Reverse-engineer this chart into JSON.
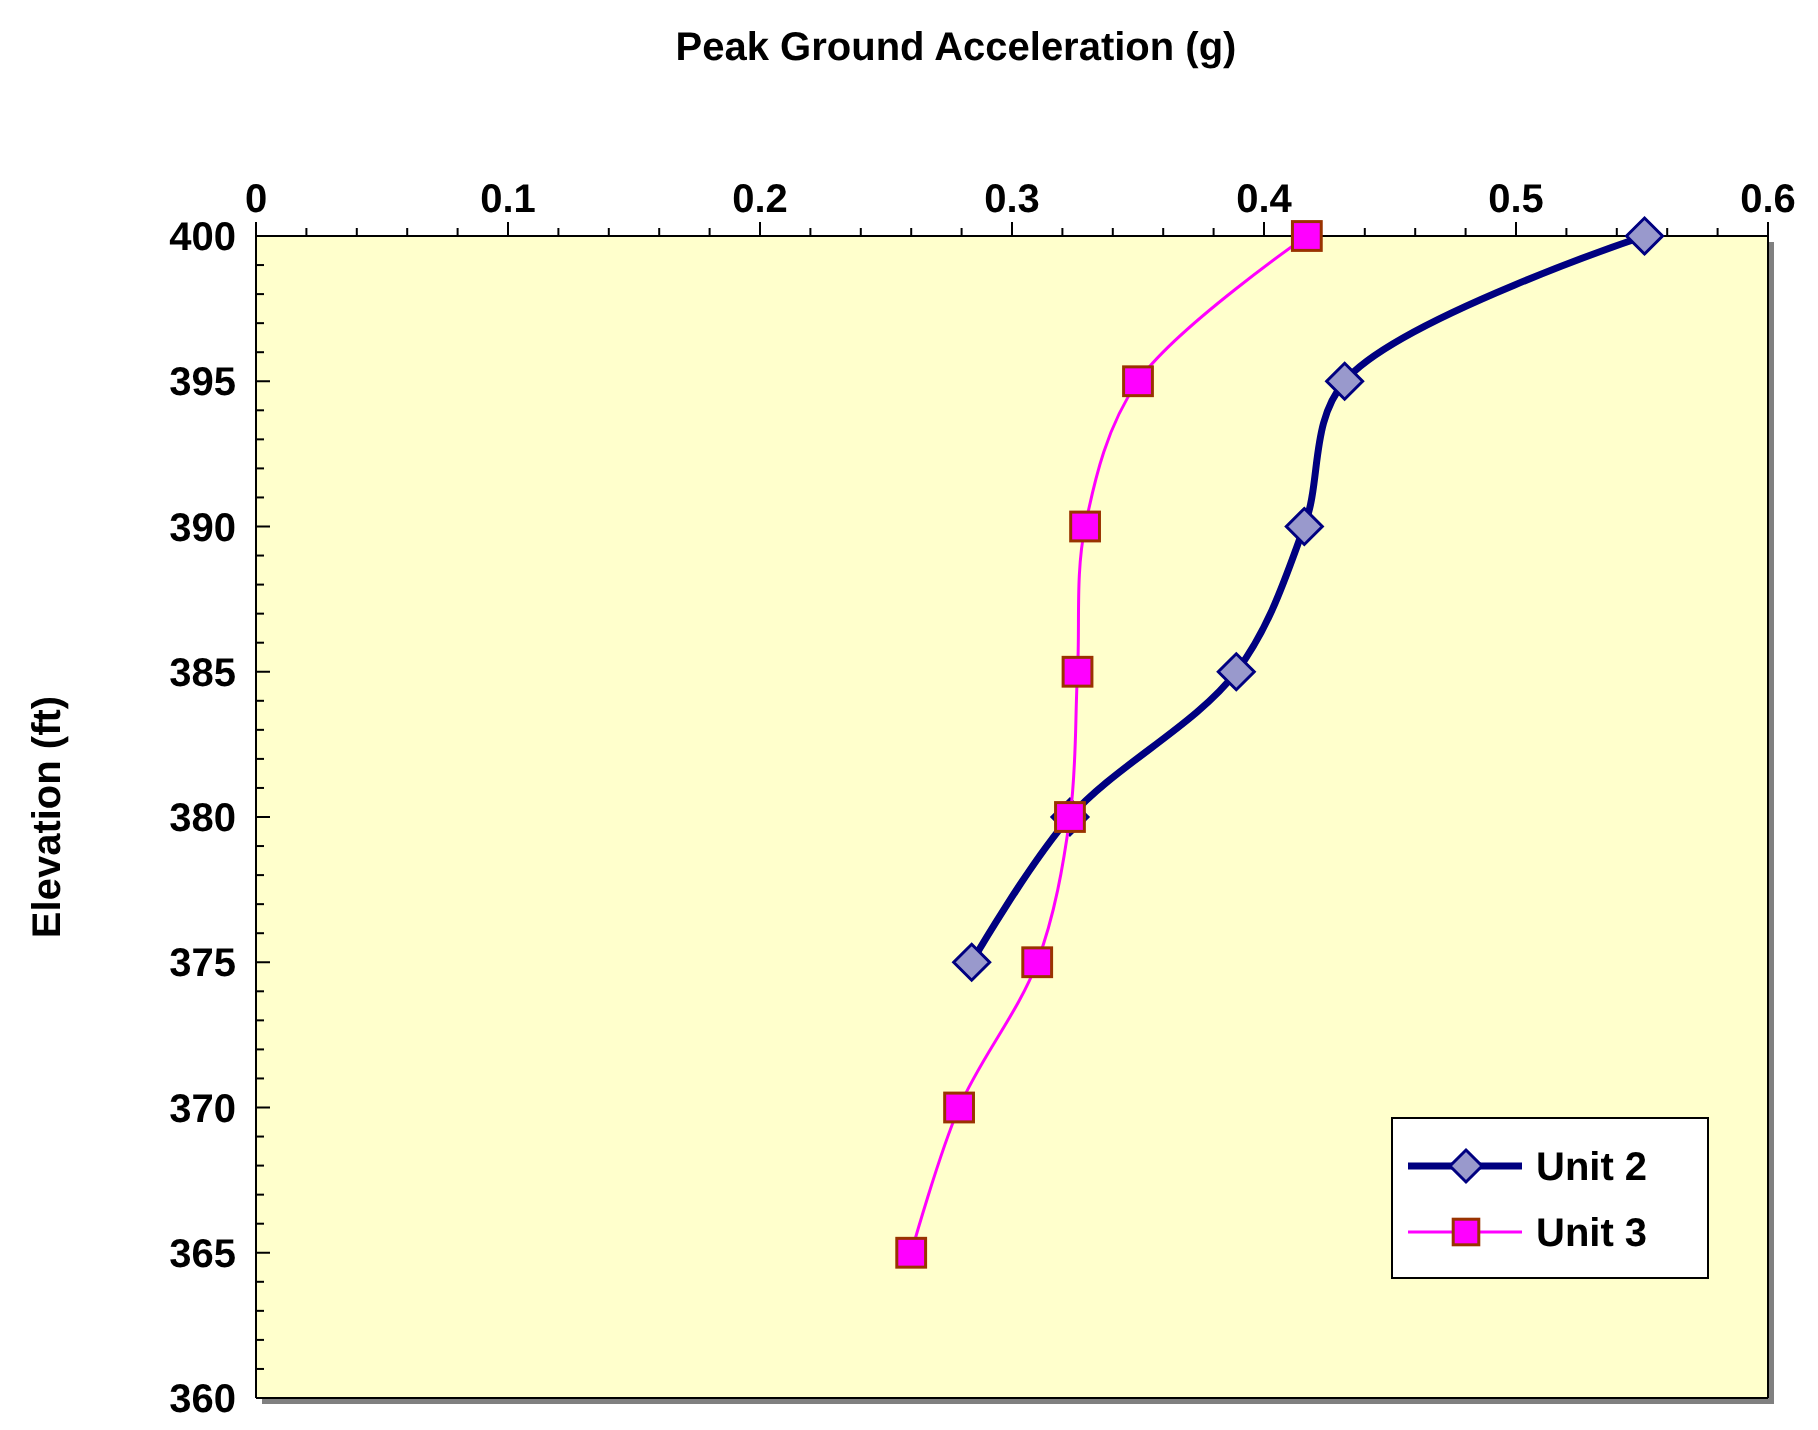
{
  "chart_data": {
    "type": "line",
    "xlabel": "Peak Ground Acceleration (g)",
    "ylabel": "Elevation (ft)",
    "xlim": [
      0,
      0.6
    ],
    "xticks": [
      0,
      {
        "value": 0.02,
        "label": null
      },
      {
        "value": 0.04,
        "label": null
      },
      {
        "value": 0.06,
        "label": null
      },
      {
        "value": 0.08,
        "label": null
      },
      0.1,
      {
        "value": 0.12,
        "label": null
      },
      {
        "value": 0.14,
        "label": null
      },
      {
        "value": 0.16,
        "label": null
      },
      {
        "value": 0.18,
        "label": null
      },
      0.2,
      {
        "value": 0.22,
        "label": null
      },
      {
        "value": 0.24,
        "label": null
      },
      {
        "value": 0.26,
        "label": null
      },
      {
        "value": 0.28,
        "label": null
      },
      0.3,
      {
        "value": 0.32,
        "label": null
      },
      {
        "value": 0.34,
        "label": null
      },
      {
        "value": 0.36,
        "label": null
      },
      {
        "value": 0.38,
        "label": null
      },
      0.4,
      {
        "value": 0.42,
        "label": null
      },
      {
        "value": 0.44,
        "label": null
      },
      {
        "value": 0.46,
        "label": null
      },
      {
        "value": 0.48,
        "label": null
      },
      0.5,
      {
        "value": 0.52,
        "label": null
      },
      {
        "value": 0.54,
        "label": null
      },
      {
        "value": 0.56,
        "label": null
      },
      {
        "value": 0.58,
        "label": null
      },
      0.6
    ],
    "ylim": [
      360,
      400
    ],
    "yticks": [
      360,
      {
        "value": 361,
        "label": null
      },
      {
        "value": 362,
        "label": null
      },
      {
        "value": 363,
        "label": null
      },
      {
        "value": 364,
        "label": null
      },
      365,
      {
        "value": 366,
        "label": null
      },
      {
        "value": 367,
        "label": null
      },
      {
        "value": 368,
        "label": null
      },
      {
        "value": 369,
        "label": null
      },
      370,
      {
        "value": 371,
        "label": null
      },
      {
        "value": 372,
        "label": null
      },
      {
        "value": 373,
        "label": null
      },
      {
        "value": 374,
        "label": null
      },
      375,
      {
        "value": 376,
        "label": null
      },
      {
        "value": 377,
        "label": null
      },
      {
        "value": 378,
        "label": null
      },
      {
        "value": 379,
        "label": null
      },
      380,
      {
        "value": 381,
        "label": null
      },
      {
        "value": 382,
        "label": null
      },
      {
        "value": 383,
        "label": null
      },
      {
        "value": 384,
        "label": null
      },
      385,
      {
        "value": 386,
        "label": null
      },
      {
        "value": 387,
        "label": null
      },
      {
        "value": 388,
        "label": null
      },
      {
        "value": 389,
        "label": null
      },
      390,
      {
        "value": 391,
        "label": null
      },
      {
        "value": 392,
        "label": null
      },
      {
        "value": 393,
        "label": null
      },
      {
        "value": 394,
        "label": null
      },
      395,
      {
        "value": 396,
        "label": null
      },
      {
        "value": 397,
        "label": null
      },
      {
        "value": 398,
        "label": null
      },
      {
        "value": 399,
        "label": null
      },
      400
    ],
    "grid": false,
    "legend": "bottom right",
    "line_style": "solid",
    "series": [
      {
        "name": "Unit 2",
        "color": "#000080",
        "marker": "diamond",
        "x": [
          0.551,
          0.432,
          0.416,
          0.389,
          0.323,
          0.284
        ],
        "values": [
          400,
          395,
          390,
          385,
          380,
          375
        ]
      },
      {
        "name": "Unit 3",
        "color": "#ff00ff",
        "marker": "square",
        "x": [
          0.417,
          0.35,
          0.329,
          0.326,
          0.323,
          0.31,
          0.279,
          0.26
        ],
        "values": [
          400,
          395,
          390,
          385,
          380,
          375,
          370,
          365
        ]
      }
    ]
  }
}
